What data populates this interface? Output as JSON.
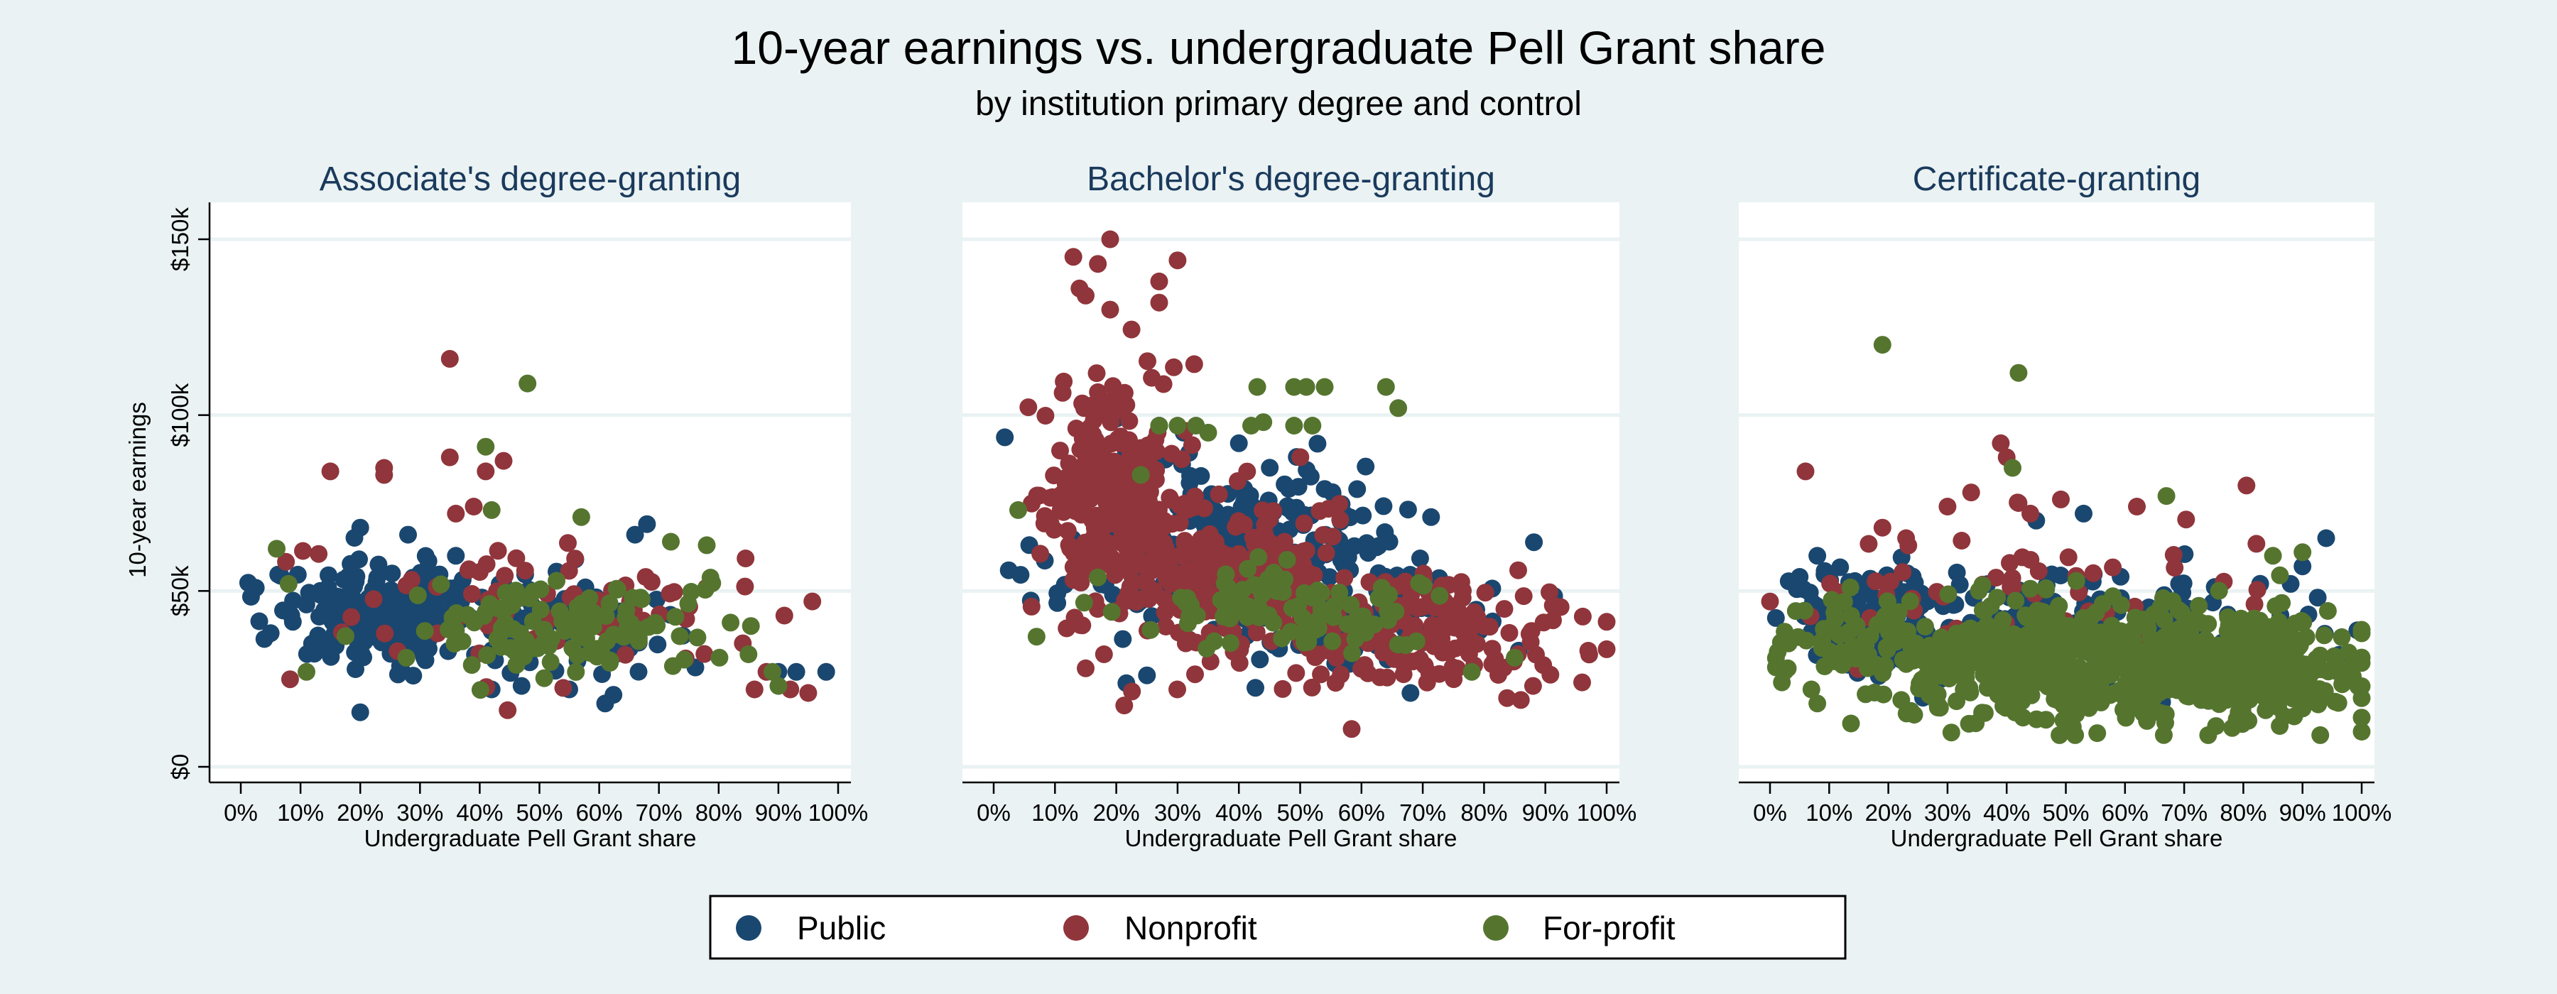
{
  "chart_data": [
    {
      "type": "scatter",
      "title": "Associate's degree-granting",
      "xlabel": "Undergraduate Pell Grant share",
      "ylabel": "10-year earnings",
      "xlim": [
        0,
        1
      ],
      "ylim": [
        0,
        150000
      ],
      "xticks": [
        "0%",
        "10%",
        "20%",
        "30%",
        "40%",
        "50%",
        "60%",
        "70%",
        "80%",
        "90%",
        "100%"
      ],
      "yticks": [
        "$0",
        "$50k",
        "$100k",
        "$150k"
      ],
      "grid": true,
      "series": [
        {
          "name": "Public",
          "clusters": [
            {
              "cx": 0.24,
              "cy": 44000,
              "sx": 0.09,
              "sy": 7000,
              "n": 220
            },
            {
              "cx": 0.5,
              "cy": 40000,
              "sx": 0.13,
              "sy": 8000,
              "n": 60
            }
          ],
          "points": [
            [
              0.05,
              38000
            ],
            [
              0.2,
              15500
            ],
            [
              0.61,
              18000
            ],
            [
              0.93,
              27000
            ],
            [
              0.98,
              27000
            ],
            [
              0.9,
              27000
            ],
            [
              0.55,
              22000
            ],
            [
              0.2,
              68000
            ],
            [
              0.28,
              66000
            ],
            [
              0.36,
              60000
            ],
            [
              0.66,
              66000
            ],
            [
              0.42,
              22000
            ],
            [
              0.47,
              23000
            ],
            [
              0.68,
              69000
            ],
            [
              0.56,
              59000
            ]
          ]
        },
        {
          "name": "Nonprofit",
          "clusters": [
            {
              "cx": 0.5,
              "cy": 45000,
              "sx": 0.17,
              "sy": 11000,
              "n": 75
            }
          ],
          "points": [
            [
              0.35,
              116000
            ],
            [
              0.24,
              85000
            ],
            [
              0.24,
              83000
            ],
            [
              0.35,
              88000
            ],
            [
              0.44,
              87000
            ],
            [
              0.41,
              84000
            ],
            [
              0.15,
              84000
            ],
            [
              0.36,
              72000
            ],
            [
              0.39,
              74000
            ],
            [
              0.86,
              22000
            ],
            [
              0.92,
              22000
            ],
            [
              0.95,
              21000
            ],
            [
              0.91,
              43000
            ],
            [
              0.88,
              27000
            ]
          ]
        },
        {
          "name": "For-profit",
          "clusters": [
            {
              "cx": 0.55,
              "cy": 40000,
              "sx": 0.14,
              "sy": 7000,
              "n": 115
            }
          ],
          "points": [
            [
              0.48,
              109000
            ],
            [
              0.41,
              91000
            ],
            [
              0.42,
              73000
            ],
            [
              0.06,
              62000
            ],
            [
              0.08,
              52000
            ],
            [
              0.11,
              27000
            ],
            [
              0.78,
              63000
            ],
            [
              0.82,
              41000
            ],
            [
              0.85,
              32000
            ],
            [
              0.89,
              27000
            ],
            [
              0.9,
              23000
            ],
            [
              0.72,
              64000
            ],
            [
              0.57,
              71000
            ]
          ]
        }
      ]
    },
    {
      "type": "scatter",
      "title": "Bachelor's degree-granting",
      "xlabel": "Undergraduate Pell Grant share",
      "ylabel": "",
      "xlim": [
        0,
        1
      ],
      "ylim": [
        0,
        150000
      ],
      "xticks": [
        "0%",
        "10%",
        "20%",
        "30%",
        "40%",
        "50%",
        "60%",
        "70%",
        "80%",
        "90%",
        "100%"
      ],
      "yticks": [
        "$0",
        "$50k",
        "$100k",
        "$150k"
      ],
      "grid": true,
      "series": [
        {
          "name": "Public",
          "clusters": [
            {
              "cx": 0.38,
              "cy": 62000,
              "sx": 0.13,
              "sy": 12000,
              "n": 240
            },
            {
              "cx": 0.6,
              "cy": 45000,
              "sx": 0.12,
              "sy": 9000,
              "n": 90
            }
          ],
          "points": [
            [
              0.25,
              26000
            ],
            [
              0.68,
              21000
            ],
            [
              0.71,
              45000
            ],
            [
              0.2,
              99000
            ],
            [
              0.27,
              97000
            ],
            [
              0.31,
              95000
            ],
            [
              0.4,
              92000
            ],
            [
              0.54,
              79000
            ]
          ]
        },
        {
          "name": "Nonprofit",
          "clusters": [
            {
              "cx": 0.2,
              "cy": 78000,
              "sx": 0.06,
              "sy": 16000,
              "n": 280
            },
            {
              "cx": 0.38,
              "cy": 56000,
              "sx": 0.1,
              "sy": 12000,
              "n": 220
            },
            {
              "cx": 0.7,
              "cy": 38000,
              "sx": 0.12,
              "sy": 8000,
              "n": 150
            }
          ],
          "points": [
            [
              0.19,
              150000
            ],
            [
              0.13,
              145000
            ],
            [
              0.3,
              144000
            ],
            [
              0.17,
              143000
            ],
            [
              0.14,
              136000
            ],
            [
              0.15,
              134000
            ],
            [
              0.27,
              138000
            ],
            [
              0.27,
              132000
            ],
            [
              0.19,
              130000
            ],
            [
              0.97,
              33000
            ],
            [
              0.96,
              24000
            ],
            [
              0.88,
              23000
            ],
            [
              0.86,
              19000
            ],
            [
              0.15,
              28000
            ],
            [
              0.18,
              32000
            ]
          ]
        },
        {
          "name": "For-profit",
          "clusters": [
            {
              "cx": 0.5,
              "cy": 44000,
              "sx": 0.12,
              "sy": 6500,
              "n": 90
            }
          ],
          "points": [
            [
              0.04,
              73000
            ],
            [
              0.27,
              97000
            ],
            [
              0.3,
              97000
            ],
            [
              0.33,
              97000
            ],
            [
              0.42,
              97000
            ],
            [
              0.44,
              98000
            ],
            [
              0.43,
              108000
            ],
            [
              0.49,
              108000
            ],
            [
              0.51,
              108000
            ],
            [
              0.54,
              108000
            ],
            [
              0.49,
              97000
            ],
            [
              0.52,
              97000
            ],
            [
              0.64,
              108000
            ],
            [
              0.66,
              102000
            ],
            [
              0.35,
              95000
            ],
            [
              0.07,
              37000
            ],
            [
              0.78,
              27000
            ],
            [
              0.85,
              31000
            ],
            [
              0.24,
              83000
            ]
          ]
        }
      ]
    },
    {
      "type": "scatter",
      "title": "Certificate-granting",
      "xlabel": "Undergraduate Pell Grant share",
      "ylabel": "",
      "xlim": [
        0,
        1
      ],
      "ylim": [
        0,
        150000
      ],
      "xticks": [
        "0%",
        "10%",
        "20%",
        "30%",
        "40%",
        "50%",
        "60%",
        "70%",
        "80%",
        "90%",
        "100%"
      ],
      "yticks": [
        "$0",
        "$50k",
        "$100k",
        "$150k"
      ],
      "grid": true,
      "series": [
        {
          "name": "Public",
          "clusters": [
            {
              "cx": 0.17,
              "cy": 42000,
              "sx": 0.07,
              "sy": 7000,
              "n": 170
            },
            {
              "cx": 0.55,
              "cy": 40000,
              "sx": 0.18,
              "sy": 8000,
              "n": 130
            }
          ],
          "points": [
            [
              0.94,
              65000
            ],
            [
              0.9,
              57000
            ],
            [
              0.88,
              52000
            ],
            [
              0.05,
              54000
            ],
            [
              0.08,
              60000
            ],
            [
              0.45,
              70000
            ],
            [
              0.53,
              72000
            ]
          ]
        },
        {
          "name": "Nonprofit",
          "clusters": [
            {
              "cx": 0.45,
              "cy": 50000,
              "sx": 0.2,
              "sy": 12000,
              "n": 60
            }
          ],
          "points": [
            [
              0.0,
              47000
            ],
            [
              0.06,
              84000
            ],
            [
              0.39,
              92000
            ],
            [
              0.4,
              88000
            ],
            [
              0.34,
              78000
            ],
            [
              0.3,
              74000
            ],
            [
              0.42,
              75000
            ],
            [
              0.44,
              72000
            ],
            [
              0.62,
              74000
            ],
            [
              0.19,
              68000
            ],
            [
              0.23,
              65000
            ]
          ]
        },
        {
          "name": "For-profit",
          "clusters": [
            {
              "cx": 0.55,
              "cy": 30000,
              "sx": 0.18,
              "sy": 8000,
              "n": 650
            },
            {
              "cx": 0.85,
              "cy": 27000,
              "sx": 0.07,
              "sy": 6000,
              "n": 150
            },
            {
              "cx": 0.15,
              "cy": 34000,
              "sx": 0.07,
              "sy": 8000,
              "n": 70
            }
          ],
          "points": [
            [
              0.19,
              120000
            ],
            [
              0.42,
              112000
            ],
            [
              0.41,
              85000
            ],
            [
              0.67,
              77000
            ],
            [
              0.93,
              9000
            ],
            [
              1.0,
              10000
            ],
            [
              1.0,
              14000
            ],
            [
              0.02,
              24000
            ],
            [
              0.03,
              28000
            ],
            [
              0.08,
              18000
            ],
            [
              0.07,
              22000
            ],
            [
              0.85,
              60000
            ],
            [
              0.9,
              61000
            ]
          ]
        }
      ]
    }
  ],
  "header": {
    "title": "10-year earnings vs. undergraduate Pell Grant share",
    "subtitle": "by institution primary degree and control"
  },
  "colors": {
    "Public": "#1a476f",
    "Nonprofit": "#90353b",
    "For-profit": "#55752f",
    "background": "#eaf2f3",
    "plot_background": "#ffffff",
    "panel_title": "#1a3a5c"
  },
  "legend": {
    "placement": "bottom",
    "items": [
      {
        "label": "Public"
      },
      {
        "label": "Nonprofit"
      },
      {
        "label": "For-profit"
      }
    ]
  }
}
